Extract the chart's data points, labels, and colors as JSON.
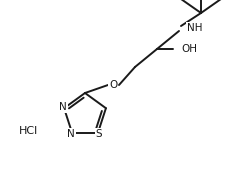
{
  "bg_color": "#ffffff",
  "line_color": "#1a1a1a",
  "line_width": 1.4,
  "font_size": 7.5,
  "figsize": [
    2.49,
    1.83
  ],
  "dpi": 100,
  "xlim": [
    0,
    249
  ],
  "ylim": [
    0,
    183
  ]
}
